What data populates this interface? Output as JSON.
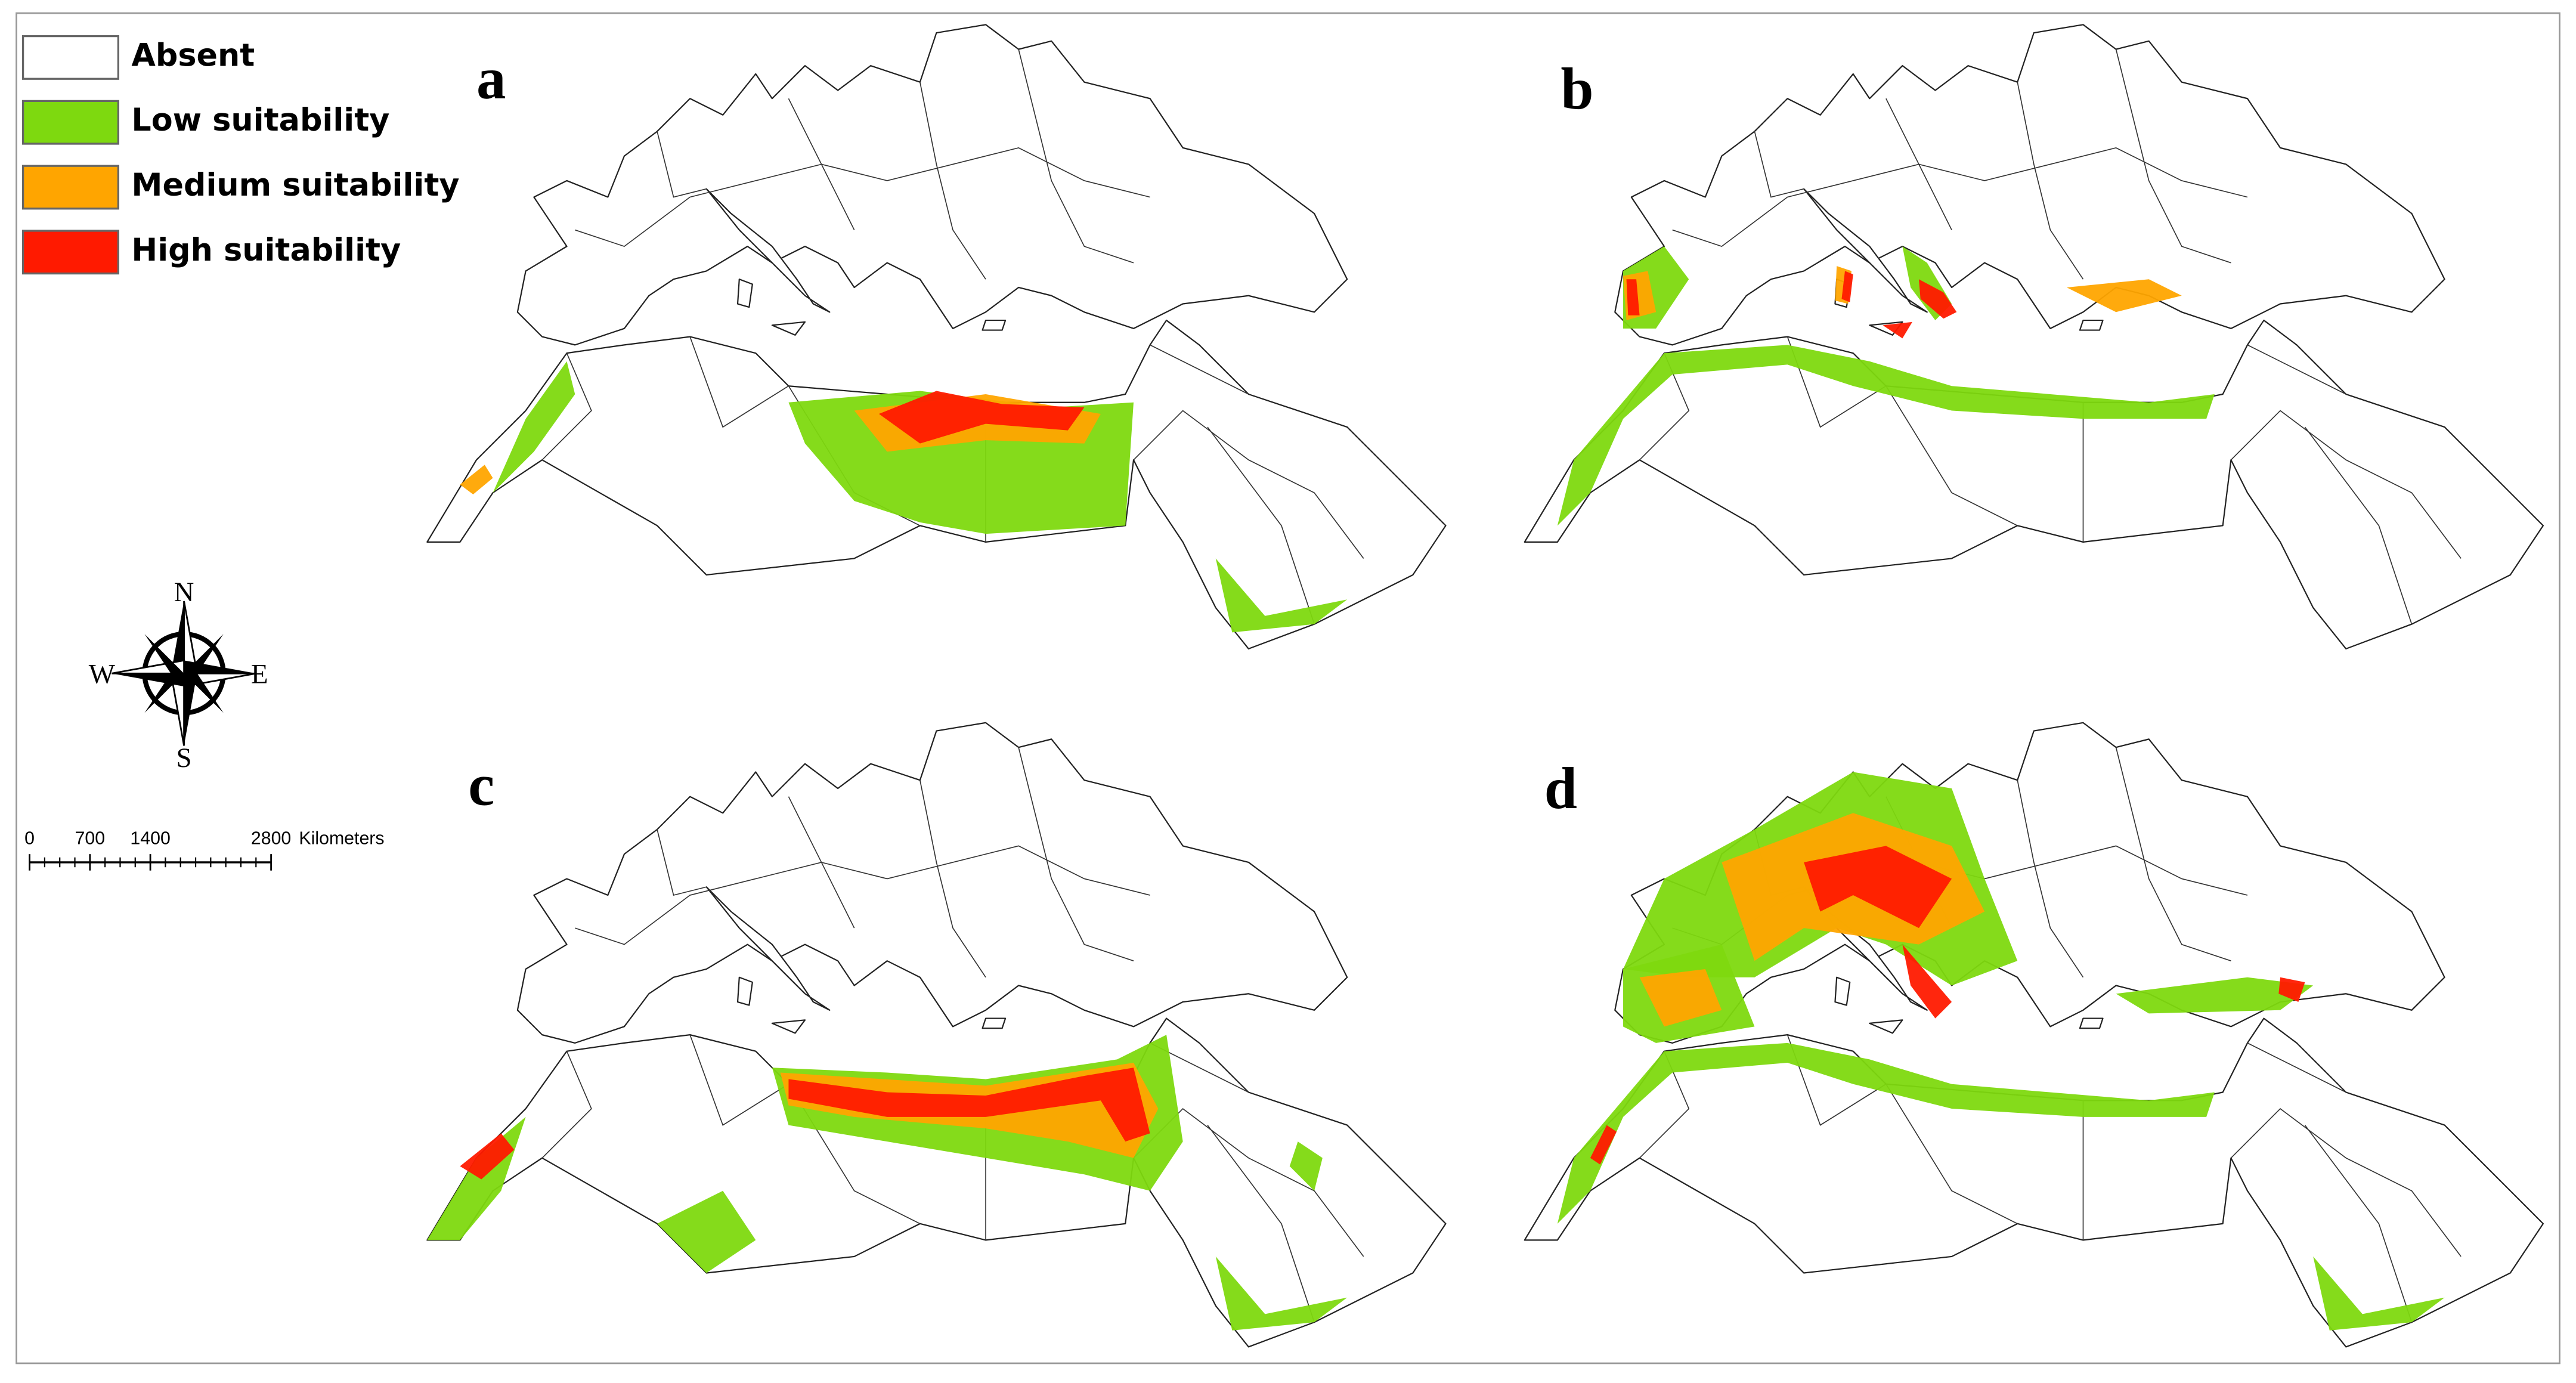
{
  "legend": [
    {
      "label": "Absent",
      "color": "#ffffff"
    },
    {
      "label": "Low suitability",
      "color": "#7ed90f"
    },
    {
      "label": "Medium suitability",
      "color": "#ffa500"
    },
    {
      "label": "High suitability",
      "color": "#ff1a00"
    }
  ],
  "panels": [
    {
      "label": "a"
    },
    {
      "label": "b"
    },
    {
      "label": "c"
    },
    {
      "label": "d"
    }
  ],
  "compass": {
    "north": "N",
    "east": "E",
    "south": "S",
    "west": "W"
  },
  "scale_bar": {
    "ticks": [
      0,
      700,
      1400,
      2800
    ],
    "unit": "Kilometers"
  }
}
